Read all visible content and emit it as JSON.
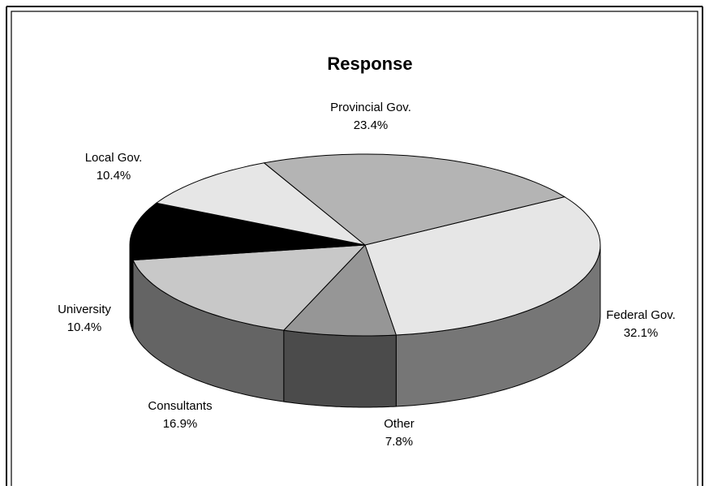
{
  "chart_data": {
    "type": "pie",
    "title": "Response",
    "slices": [
      {
        "label": "Federal Gov.",
        "percent_label": "32.1%",
        "value": 32.1,
        "color": "#e6e6e6",
        "side_color": "#767676"
      },
      {
        "label": "Other",
        "percent_label": "7.8%",
        "value": 7.8,
        "color": "#969696",
        "side_color": "#4b4b4b"
      },
      {
        "label": "Consultants",
        "percent_label": "16.9%",
        "value": 16.9,
        "color": "#c8c8c8",
        "side_color": "#646464"
      },
      {
        "label": "University",
        "percent_label": "10.4%",
        "value": 10.4,
        "color": "#000000",
        "side_color": "#000000"
      },
      {
        "label": "Local Gov.",
        "percent_label": "10.4%",
        "value": 10.4,
        "color": "#e6e6e6",
        "side_color": "#737373"
      },
      {
        "label": "Provincial Gov.",
        "percent_label": "23.4%",
        "value": 23.4,
        "color": "#b4b4b4",
        "side_color": "#5a5a5a"
      }
    ],
    "style": "3d-exploded-none"
  }
}
